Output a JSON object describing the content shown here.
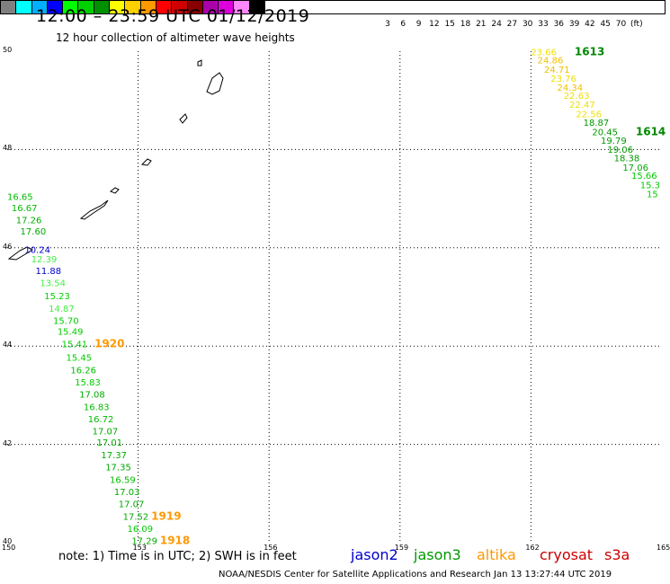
{
  "title": "12:00 – 23:59 UTC 01/12/2019",
  "subtitle": "12 hour collection of altimeter wave heights",
  "color_scale": {
    "labels": [
      "3",
      "6",
      "9",
      "12",
      "15",
      "18",
      "21",
      "24",
      "27",
      "30",
      "33",
      "36",
      "39",
      "42",
      "45",
      "70",
      "(ft)"
    ],
    "colors": [
      "#808080",
      "#00ffff",
      "#00b0ff",
      "#0000ff",
      "#00ff00",
      "#00d000",
      "#009000",
      "#ffff00",
      "#ffd000",
      "#ff9900",
      "#ff0000",
      "#d00000",
      "#880000",
      "#aa00aa",
      "#dd00dd",
      "#ff88ff",
      "#000000"
    ]
  },
  "axes": {
    "x_ticks": [
      "150",
      "153",
      "156",
      "159",
      "162",
      "165"
    ],
    "y_ticks": [
      "50",
      "48",
      "46",
      "44",
      "42",
      "40"
    ]
  },
  "colors": {
    "jason2": "#0000cc",
    "jason3": "#009900",
    "altika": "#ff9900",
    "cryosat": "#cc0000",
    "s3a": "#cc0000"
  },
  "observations": [
    {
      "text": "23.66",
      "lon": 162.0,
      "lat": 49.92,
      "color": "#f0e000"
    },
    {
      "text": "1613",
      "lon": 163.0,
      "lat": 49.92,
      "color": "#008800",
      "pass": true
    },
    {
      "text": "24.86",
      "lon": 162.15,
      "lat": 49.75,
      "color": "#f0c000"
    },
    {
      "text": "24.71",
      "lon": 162.3,
      "lat": 49.56,
      "color": "#f0c000"
    },
    {
      "text": "23.76",
      "lon": 162.45,
      "lat": 49.38,
      "color": "#f0e000"
    },
    {
      "text": "24.34",
      "lon": 162.6,
      "lat": 49.2,
      "color": "#f0c000"
    },
    {
      "text": "22.63",
      "lon": 162.75,
      "lat": 49.03,
      "color": "#f0e000"
    },
    {
      "text": "22.47",
      "lon": 162.88,
      "lat": 48.85,
      "color": "#f0e000"
    },
    {
      "text": "22.56",
      "lon": 163.03,
      "lat": 48.66,
      "color": "#f0e000"
    },
    {
      "text": "18.87",
      "lon": 163.2,
      "lat": 48.48,
      "color": "#009900"
    },
    {
      "text": "20.45",
      "lon": 163.4,
      "lat": 48.29,
      "color": "#009900"
    },
    {
      "text": "1614",
      "lon": 164.4,
      "lat": 48.29,
      "color": "#008800",
      "pass": true
    },
    {
      "text": "19.79",
      "lon": 163.6,
      "lat": 48.12,
      "color": "#009900"
    },
    {
      "text": "19.06",
      "lon": 163.75,
      "lat": 47.93,
      "color": "#009900"
    },
    {
      "text": "18.38",
      "lon": 163.9,
      "lat": 47.76,
      "color": "#009900"
    },
    {
      "text": "17.06",
      "lon": 164.1,
      "lat": 47.57,
      "color": "#00aa00"
    },
    {
      "text": "15.66",
      "lon": 164.3,
      "lat": 47.4,
      "color": "#00cc00"
    },
    {
      "text": "15.3",
      "lon": 164.5,
      "lat": 47.21,
      "color": "#00cc00"
    },
    {
      "text": "15",
      "lon": 164.65,
      "lat": 47.03,
      "color": "#00cc00"
    },
    {
      "text": "16.65",
      "lon": 150.0,
      "lat": 46.97,
      "color": "#00bb00"
    },
    {
      "text": "16.67",
      "lon": 150.1,
      "lat": 46.75,
      "color": "#00bb00"
    },
    {
      "text": "17.26",
      "lon": 150.2,
      "lat": 46.5,
      "color": "#00aa00"
    },
    {
      "text": "17.60",
      "lon": 150.3,
      "lat": 46.27,
      "color": "#00aa00"
    },
    {
      "text": "10.24",
      "lon": 150.4,
      "lat": 45.9,
      "color": "#0000cc"
    },
    {
      "text": "12.39",
      "lon": 150.55,
      "lat": 45.7,
      "color": "#44ee44"
    },
    {
      "text": "11.88",
      "lon": 150.65,
      "lat": 45.47,
      "color": "#0000cc"
    },
    {
      "text": "13.54",
      "lon": 150.75,
      "lat": 45.22,
      "color": "#44ee44"
    },
    {
      "text": "15.23",
      "lon": 150.85,
      "lat": 44.95,
      "color": "#00cc00"
    },
    {
      "text": "14.87",
      "lon": 150.95,
      "lat": 44.7,
      "color": "#44ee44"
    },
    {
      "text": "15.70",
      "lon": 151.05,
      "lat": 44.45,
      "color": "#00cc00"
    },
    {
      "text": "15.49",
      "lon": 151.15,
      "lat": 44.23,
      "color": "#00cc00"
    },
    {
      "text": "15.41",
      "lon": 151.25,
      "lat": 43.98,
      "color": "#00cc00"
    },
    {
      "text": "1920",
      "lon": 152.0,
      "lat": 43.98,
      "color": "#ff9900",
      "pass": true
    },
    {
      "text": "15.45",
      "lon": 151.35,
      "lat": 43.7,
      "color": "#00cc00"
    },
    {
      "text": "16.26",
      "lon": 151.45,
      "lat": 43.45,
      "color": "#00bb00"
    },
    {
      "text": "15.83",
      "lon": 151.55,
      "lat": 43.2,
      "color": "#00cc00"
    },
    {
      "text": "17.08",
      "lon": 151.65,
      "lat": 42.95,
      "color": "#00aa00"
    },
    {
      "text": "16.83",
      "lon": 151.75,
      "lat": 42.7,
      "color": "#00bb00"
    },
    {
      "text": "16.72",
      "lon": 151.85,
      "lat": 42.45,
      "color": "#00bb00"
    },
    {
      "text": "17.07",
      "lon": 151.95,
      "lat": 42.2,
      "color": "#00aa00"
    },
    {
      "text": "17.01",
      "lon": 152.05,
      "lat": 41.97,
      "color": "#00aa00"
    },
    {
      "text": "17.37",
      "lon": 152.15,
      "lat": 41.72,
      "color": "#00aa00"
    },
    {
      "text": "17.35",
      "lon": 152.25,
      "lat": 41.47,
      "color": "#00aa00"
    },
    {
      "text": "16.59",
      "lon": 152.35,
      "lat": 41.22,
      "color": "#00bb00"
    },
    {
      "text": "17.03",
      "lon": 152.45,
      "lat": 40.97,
      "color": "#00aa00"
    },
    {
      "text": "17.07",
      "lon": 152.55,
      "lat": 40.72,
      "color": "#00aa00"
    },
    {
      "text": "17.52",
      "lon": 152.65,
      "lat": 40.47,
      "color": "#00aa00"
    },
    {
      "text": "1919",
      "lon": 153.3,
      "lat": 40.47,
      "color": "#ff9900",
      "pass": true
    },
    {
      "text": "16.09",
      "lon": 152.75,
      "lat": 40.22,
      "color": "#00cc00"
    },
    {
      "text": "17.29",
      "lon": 152.85,
      "lat": 39.97,
      "color": "#00aa00"
    },
    {
      "text": "1918",
      "lon": 153.5,
      "lat": 39.97,
      "color": "#ff9900",
      "pass": true
    }
  ],
  "note": "note: 1) Time is in UTC; 2) SWH is in feet",
  "legend": [
    {
      "name": "jason2",
      "color": "#0000cc"
    },
    {
      "name": "jason3",
      "color": "#009900"
    },
    {
      "name": "altika",
      "color": "#ff9900"
    },
    {
      "name": "cryosat",
      "color": "#cc0000"
    },
    {
      "name": "s3a",
      "color": "#cc0000"
    }
  ],
  "footer": "NOAA/NESDIS Center for Satellite Applications and Research   Jan 13 13:27:44 UTC 2019"
}
